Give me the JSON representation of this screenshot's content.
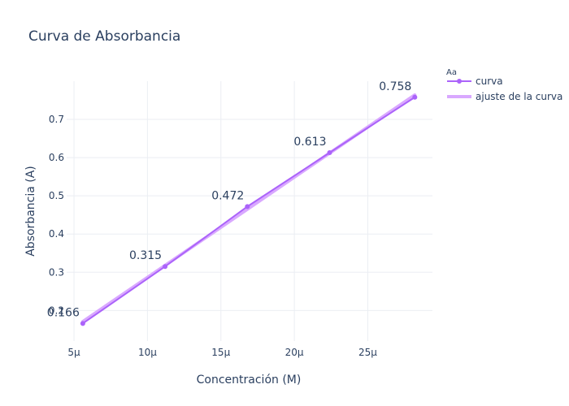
{
  "chart_data": {
    "type": "line",
    "title": "Curva de Absorbancia",
    "xlabel": "Concentración (M)",
    "ylabel": "Absorbancia (A)",
    "x_tick_values": [
      5,
      10,
      15,
      20,
      25
    ],
    "x_tick_labels": [
      "5μ",
      "10μ",
      "15μ",
      "20μ",
      "25μ"
    ],
    "y_tick_values": [
      0.2,
      0.3,
      0.4,
      0.5,
      0.6,
      0.7
    ],
    "y_tick_labels": [
      "0.2",
      "0.3",
      "0.4",
      "0.5",
      "0.6",
      "0.7"
    ],
    "xlim": [
      4.5,
      29.4
    ],
    "ylim": [
      0.12,
      0.8
    ],
    "grid": true,
    "legend_title": "Aa",
    "legend_position": "top-right",
    "series": [
      {
        "name": "curva",
        "mode": "lines+markers+text",
        "color": "#ab63fa",
        "x": [
          5.6,
          11.2,
          16.8,
          22.4,
          28.2
        ],
        "y": [
          0.166,
          0.315,
          0.472,
          0.613,
          0.758
        ],
        "labels": [
          "0.166",
          "0.315",
          "0.472",
          "0.613",
          "0.758"
        ]
      },
      {
        "name": "ajuste de la curva",
        "mode": "lines",
        "color": "#d9a8ff",
        "x": [
          5.6,
          28.2
        ],
        "y": [
          0.171,
          0.764
        ]
      }
    ]
  }
}
